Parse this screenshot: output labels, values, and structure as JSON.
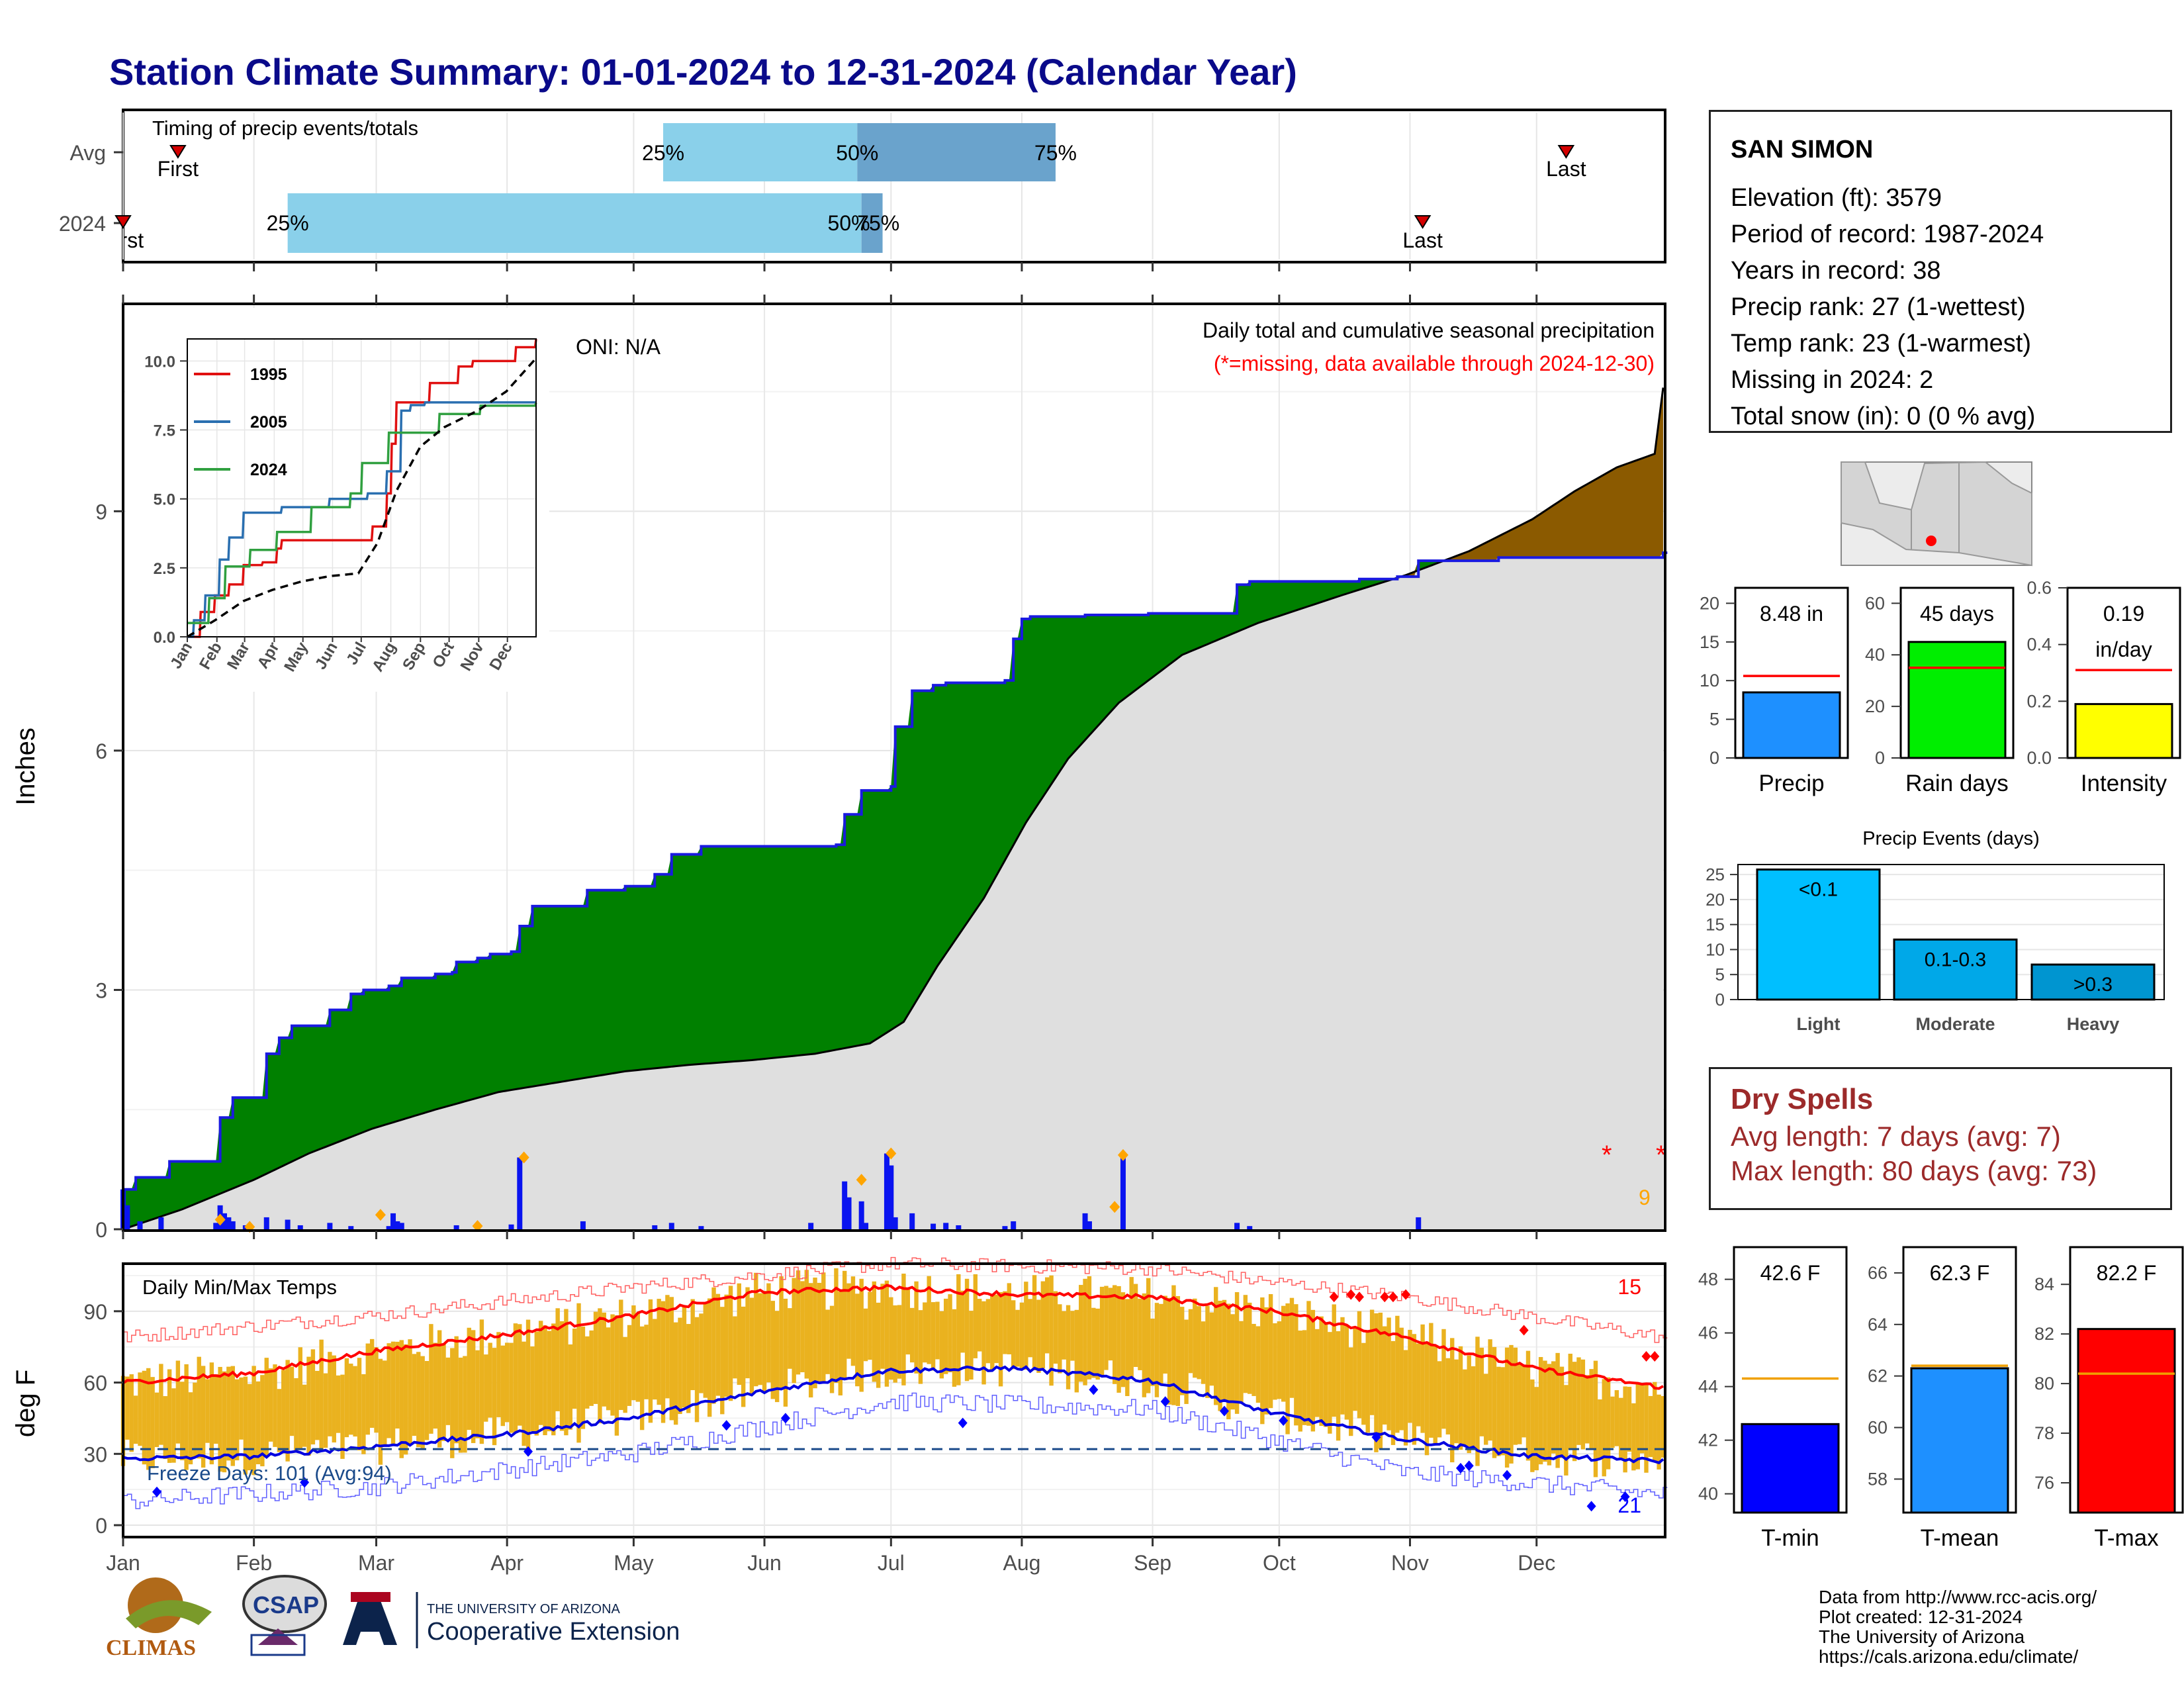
{
  "title": "Station Climate Summary: 01-01-2024 to 12-31-2024 (Calendar Year)",
  "colors": {
    "title": "#0a0a8a",
    "avg_fill": "#8ad0ea",
    "mid_fill": "#6aa3cc",
    "green": "#008000",
    "brown": "#8b5a00",
    "blue_line": "#1a1ae0",
    "gray": "#dfdfdf",
    "orange": "#f0a000",
    "gold": "#eab21f"
  },
  "timing": {
    "label": "Timing of precip events/totals",
    "rows": [
      {
        "name": "Avg",
        "first": "First",
        "last": "Last",
        "p25": "25%",
        "p50": "50%",
        "p75": "75%"
      },
      {
        "name": "2024",
        "first": "First",
        "last": "Last",
        "p25": "25%",
        "p50": "50%",
        "p75": "75%"
      }
    ]
  },
  "precip_panel": {
    "ylabel": "Inches",
    "oni": "ONI: N/A",
    "caption1": "Daily total and cumulative seasonal precipitation",
    "caption2": "(*=missing, data available through 2024-12-30)",
    "yticks": [
      "0",
      "3",
      "6",
      "9"
    ],
    "count_label": "9"
  },
  "inset": {
    "yticks": [
      "0.0",
      "2.5",
      "5.0",
      "7.5",
      "10.0"
    ],
    "months": [
      "Jan",
      "Feb",
      "Mar",
      "Apr",
      "May",
      "Jun",
      "Jul",
      "Aug",
      "Sep",
      "Oct",
      "Nov",
      "Dec"
    ],
    "legend": [
      {
        "name": "1995",
        "color": "#e01010"
      },
      {
        "name": "2005",
        "color": "#2a6fb0"
      },
      {
        "name": "2024",
        "color": "#30a040"
      }
    ]
  },
  "temp_panel": {
    "label": "Daily Min/Max Temps",
    "ylabel": "deg F",
    "yticks": [
      "0",
      "30",
      "60",
      "90"
    ],
    "freeze": "Freeze Days: 101 (Avg:94)",
    "hot_count": "15",
    "cold_count": "21"
  },
  "months": [
    "Jan",
    "Feb",
    "Mar",
    "Apr",
    "May",
    "Jun",
    "Jul",
    "Aug",
    "Sep",
    "Oct",
    "Nov",
    "Dec"
  ],
  "station": {
    "name": "SAN SIMON",
    "lines": [
      "Elevation (ft): 3579",
      "Period of record: 1987-2024",
      "Years in record: 38",
      "Precip rank: 27 (1-wettest)",
      "Temp rank: 23 (1-warmest)",
      "Missing in 2024: 2",
      "Total snow (in): 0 (0 % avg)"
    ]
  },
  "precip_stats": [
    {
      "name": "Precip",
      "label": "8.48 in",
      "value": 8.48,
      "avg": 10.6,
      "ymax": 22,
      "ticks": [
        "0",
        "5",
        "10",
        "15",
        "20"
      ],
      "color": "#1e90ff"
    },
    {
      "name": "Rain days",
      "label": "45 days",
      "value": 45,
      "avg": 35,
      "ymax": 66,
      "ticks": [
        "0",
        "20",
        "40",
        "60"
      ],
      "color": "#00ee00"
    },
    {
      "name": "Intensity",
      "label": "0.19",
      "label2": "in/day",
      "value": 0.19,
      "avg": 0.31,
      "ymax": 0.6,
      "ticks": [
        "0.0",
        "0.2",
        "0.4",
        "0.6"
      ],
      "color": "#ffff00"
    }
  ],
  "precip_events": {
    "title": "Precip Events (days)",
    "categories": [
      "Light",
      "Moderate",
      "Heavy"
    ],
    "labels": [
      "<0.1",
      "0.1-0.3",
      ">0.3"
    ],
    "values": [
      26,
      12,
      7
    ],
    "yticks": [
      "0",
      "5",
      "10",
      "15",
      "20",
      "25"
    ],
    "colors": [
      "#00bfff",
      "#00a8e8",
      "#0095d0"
    ]
  },
  "dry_spells": {
    "title": "Dry Spells",
    "avg": "Avg length: 7 days (avg: 7)",
    "max": "Max length: 80 days (avg: 73)"
  },
  "temp_stats": [
    {
      "name": "T-min",
      "label": "42.6 F",
      "value": 42.6,
      "avg": 44.3,
      "ymin": 39.3,
      "ymax": 49.2,
      "ticks": [
        "40",
        "42",
        "44",
        "46",
        "48"
      ],
      "color": "#0000ff"
    },
    {
      "name": "T-mean",
      "label": "62.3 F",
      "value": 62.3,
      "avg": 62.4,
      "ymin": 56.7,
      "ymax": 67,
      "ticks": [
        "58",
        "60",
        "62",
        "64",
        "66"
      ],
      "color": "#1e90ff"
    },
    {
      "name": "T-max",
      "label": "82.2 F",
      "value": 82.2,
      "avg": 80.4,
      "ymin": 74.8,
      "ymax": 85.5,
      "ticks": [
        "76",
        "78",
        "80",
        "82",
        "84"
      ],
      "color": "#ff0000"
    }
  ],
  "credits": [
    "Data from http://www.rcc-acis.org/",
    "Plot created: 12-31-2024",
    "The University of Arizona",
    "https://cals.arizona.edu/climate/"
  ],
  "logos": {
    "climas": "CLIMAS",
    "csap": "CSAP",
    "ua_line1": "THE UNIVERSITY OF ARIZONA",
    "ua_line2": "Cooperative Extension"
  },
  "chart_data": [
    {
      "type": "area",
      "title": "Daily total and cumulative seasonal precipitation",
      "ylabel": "Inches",
      "ylim": [
        0,
        11.6
      ],
      "x": "day of year 2024 (Jan 1 .. Dec 31)",
      "series": [
        {
          "name": "2024 cumulative",
          "points": [
            [
              1,
              0.5
            ],
            [
              4,
              0.65
            ],
            [
              12,
              0.85
            ],
            [
              23,
              0.85
            ],
            [
              24,
              1.4
            ],
            [
              27,
              1.65
            ],
            [
              35,
              2.2
            ],
            [
              38,
              2.4
            ],
            [
              41,
              2.55
            ],
            [
              50,
              2.75
            ],
            [
              55,
              2.95
            ],
            [
              58,
              3.0
            ],
            [
              64,
              3.05
            ],
            [
              67,
              3.15
            ],
            [
              75,
              3.2
            ],
            [
              79,
              3.22
            ],
            [
              80,
              3.35
            ],
            [
              85,
              3.4
            ],
            [
              88,
              3.45
            ],
            [
              93,
              3.48
            ],
            [
              95,
              3.8
            ],
            [
              98,
              4.05
            ],
            [
              104,
              4.05
            ],
            [
              111,
              4.25
            ],
            [
              120,
              4.3
            ],
            [
              127,
              4.45
            ],
            [
              131,
              4.7
            ],
            [
              138,
              4.8
            ],
            [
              164,
              4.8
            ],
            [
              170,
              4.82
            ],
            [
              172,
              5.2
            ],
            [
              176,
              5.5
            ],
            [
              183,
              5.55
            ],
            [
              184,
              6.3
            ],
            [
              188,
              6.75
            ],
            [
              193,
              6.82
            ],
            [
              196,
              6.85
            ],
            [
              210,
              6.88
            ],
            [
              212,
              7.4
            ],
            [
              214,
              7.65
            ],
            [
              216,
              7.68
            ],
            [
              229,
              7.7
            ],
            [
              244,
              7.72
            ],
            [
              265,
              8.08
            ],
            [
              268,
              8.12
            ],
            [
              294,
              8.15
            ],
            [
              303,
              8.18
            ],
            [
              308,
              8.38
            ],
            [
              327,
              8.42
            ],
            [
              366,
              8.48
            ]
          ]
        },
        {
          "name": "average cumulative",
          "points": [
            [
              1,
              0
            ],
            [
              15,
              0.25
            ],
            [
              32,
              0.62
            ],
            [
              45,
              0.95
            ],
            [
              60,
              1.26
            ],
            [
              75,
              1.5
            ],
            [
              90,
              1.72
            ],
            [
              105,
              1.85
            ],
            [
              120,
              1.98
            ],
            [
              135,
              2.06
            ],
            [
              150,
              2.12
            ],
            [
              165,
              2.2
            ],
            [
              178,
              2.33
            ],
            [
              186,
              2.6
            ],
            [
              194,
              3.3
            ],
            [
              205,
              4.15
            ],
            [
              215,
              5.1
            ],
            [
              225,
              5.9
            ],
            [
              237,
              6.6
            ],
            [
              252,
              7.2
            ],
            [
              270,
              7.6
            ],
            [
              290,
              7.95
            ],
            [
              305,
              8.2
            ],
            [
              320,
              8.5
            ],
            [
              335,
              8.9
            ],
            [
              345,
              9.25
            ],
            [
              355,
              9.55
            ],
            [
              364,
              9.72
            ],
            [
              366,
              10.55
            ]
          ]
        }
      ]
    },
    {
      "type": "line",
      "title": "Daily Min/Max Temps",
      "ylabel": "deg F",
      "ylim": [
        -5,
        110
      ],
      "series": [
        {
          "name": "avg max",
          "points": [
            [
              1,
              60
            ],
            [
              32,
              64
            ],
            [
              60,
              73
            ],
            [
              91,
              80
            ],
            [
              121,
              88
            ],
            [
              152,
              98
            ],
            [
              182,
              100
            ],
            [
              213,
              97
            ],
            [
              244,
              96
            ],
            [
              274,
              90
            ],
            [
              305,
              79
            ],
            [
              335,
              66
            ],
            [
              366,
              58
            ]
          ]
        },
        {
          "name": "avg min",
          "points": [
            [
              1,
              28
            ],
            [
              32,
              29
            ],
            [
              60,
              33
            ],
            [
              91,
              38
            ],
            [
              121,
              45
            ],
            [
              152,
              56
            ],
            [
              182,
              65
            ],
            [
              213,
              66
            ],
            [
              244,
              61
            ],
            [
              274,
              47
            ],
            [
              305,
              36
            ],
            [
              335,
              29
            ],
            [
              366,
              27
            ]
          ]
        },
        {
          "name": "record high",
          "points": [
            [
              1,
              79
            ],
            [
              60,
              88
            ],
            [
              121,
              100
            ],
            [
              182,
              110
            ],
            [
              244,
              108
            ],
            [
              305,
              96
            ],
            [
              366,
              79
            ]
          ]
        },
        {
          "name": "record low",
          "points": [
            [
              1,
              10
            ],
            [
              60,
              16
            ],
            [
              121,
              30
            ],
            [
              182,
              52
            ],
            [
              244,
              49
            ],
            [
              305,
              22
            ],
            [
              366,
              13
            ]
          ]
        }
      ],
      "freeze_days": 101,
      "freeze_days_avg": 94
    },
    {
      "type": "line",
      "title": "inset cumulative precipitation",
      "ylim": [
        0,
        10.8
      ],
      "series": [
        {
          "name": "1995",
          "points": [
            [
              1,
              0
            ],
            [
              15,
              0.9
            ],
            [
              30,
              1.5
            ],
            [
              45,
              1.9
            ],
            [
              60,
              2.6
            ],
            [
              80,
              2.7
            ],
            [
              95,
              3.2
            ],
            [
              100,
              3.5
            ],
            [
              180,
              3.5
            ],
            [
              195,
              4.0
            ],
            [
              210,
              5.2
            ],
            [
              215,
              7.0
            ],
            [
              220,
              8.5
            ],
            [
              240,
              8.5
            ],
            [
              255,
              9.2
            ],
            [
              270,
              9.2
            ],
            [
              285,
              9.8
            ],
            [
              300,
              10.0
            ],
            [
              335,
              10.0
            ],
            [
              345,
              10.5
            ],
            [
              358,
              10.5
            ],
            [
              366,
              10.8
            ]
          ]
        },
        {
          "name": "2005",
          "points": [
            [
              1,
              0
            ],
            [
              8,
              0.6
            ],
            [
              20,
              1.5
            ],
            [
              35,
              2.8
            ],
            [
              45,
              3.6
            ],
            [
              60,
              4.5
            ],
            [
              100,
              4.7
            ],
            [
              150,
              5.0
            ],
            [
              190,
              5.2
            ],
            [
              210,
              6.0
            ],
            [
              225,
              8.2
            ],
            [
              235,
              8.4
            ],
            [
              250,
              8.5
            ],
            [
              366,
              8.5
            ]
          ]
        },
        {
          "name": "2024",
          "points": [
            [
              1,
              0.5
            ],
            [
              24,
              1.4
            ],
            [
              41,
              2.55
            ],
            [
              67,
              3.15
            ],
            [
              95,
              3.8
            ],
            [
              131,
              4.7
            ],
            [
              172,
              5.2
            ],
            [
              184,
              6.3
            ],
            [
              212,
              7.4
            ],
            [
              265,
              8.08
            ],
            [
              308,
              8.38
            ],
            [
              366,
              8.48
            ]
          ]
        },
        {
          "name": "avg",
          "points": [
            [
              1,
              0
            ],
            [
              30,
              0.6
            ],
            [
              60,
              1.3
            ],
            [
              90,
              1.7
            ],
            [
              120,
              2.0
            ],
            [
              150,
              2.2
            ],
            [
              180,
              2.3
            ],
            [
              200,
              3.4
            ],
            [
              220,
              5.3
            ],
            [
              245,
              6.9
            ],
            [
              270,
              7.6
            ],
            [
              305,
              8.2
            ],
            [
              335,
              8.9
            ],
            [
              366,
              10.1
            ]
          ]
        }
      ]
    },
    {
      "type": "bar",
      "title": "Precip",
      "categories": [
        "Precip"
      ],
      "values": [
        8.48
      ],
      "avg": 10.6,
      "ylim": [
        0,
        22
      ]
    },
    {
      "type": "bar",
      "title": "Rain days",
      "categories": [
        "Rain days"
      ],
      "values": [
        45
      ],
      "avg": 35,
      "ylim": [
        0,
        66
      ]
    },
    {
      "type": "bar",
      "title": "Intensity",
      "categories": [
        "Intensity"
      ],
      "values": [
        0.19
      ],
      "avg": 0.31,
      "ylim": [
        0,
        0.6
      ]
    },
    {
      "type": "bar",
      "title": "Precip Events (days)",
      "categories": [
        "Light",
        "Moderate",
        "Heavy"
      ],
      "values": [
        26,
        12,
        7
      ],
      "ylim": [
        0,
        27
      ]
    },
    {
      "type": "bar",
      "title": "T-min",
      "categories": [
        "T-min"
      ],
      "values": [
        42.6
      ],
      "avg": 44.3,
      "ylim": [
        39.3,
        49.2
      ]
    },
    {
      "type": "bar",
      "title": "T-mean",
      "categories": [
        "T-mean"
      ],
      "values": [
        62.3
      ],
      "avg": 62.4,
      "ylim": [
        56.7,
        67
      ]
    },
    {
      "type": "bar",
      "title": "T-max",
      "categories": [
        "T-max"
      ],
      "values": [
        82.2
      ],
      "avg": 80.4,
      "ylim": [
        74.8,
        85.5
      ]
    }
  ]
}
